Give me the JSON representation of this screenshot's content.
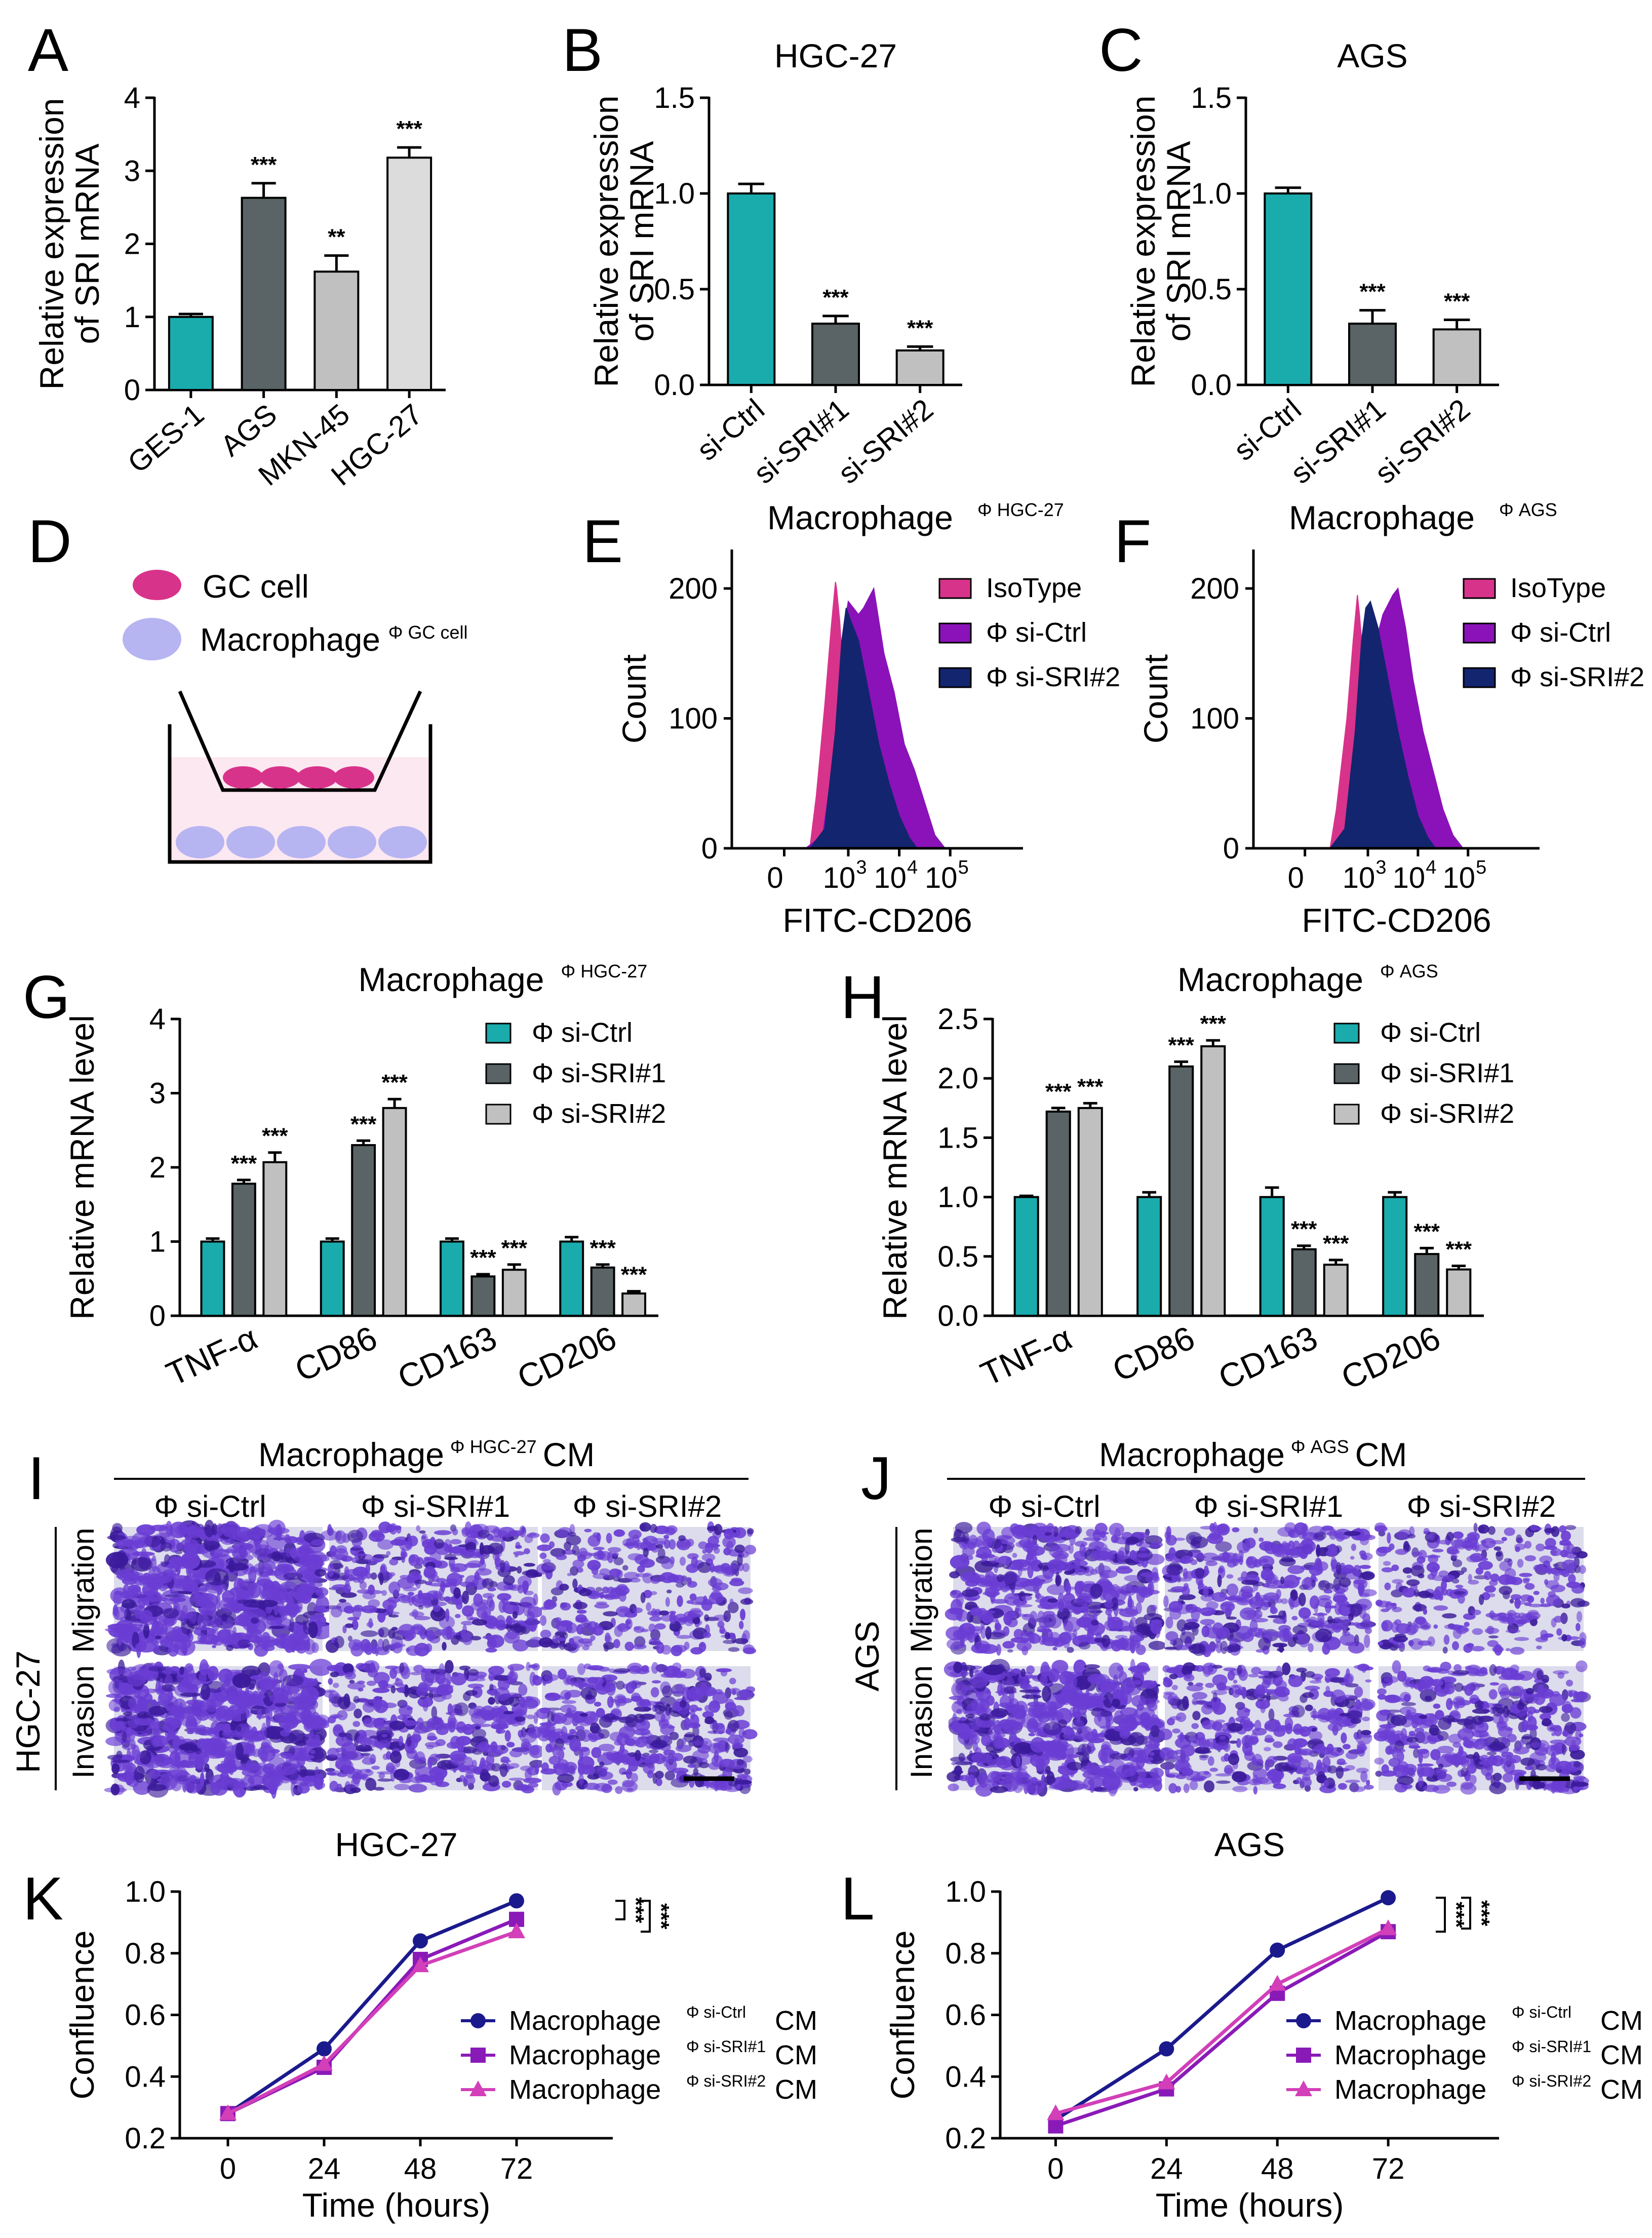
{
  "colors": {
    "teal": "#1aabad",
    "dark_gray": "#5a6365",
    "light_gray": "#c0c0c0",
    "very_light_gray": "#dcdcdc",
    "magenta": "#d8338b",
    "purple": "#8a12b8",
    "navy": "#13256e",
    "line_navy": "#1b1a8c",
    "line_purple": "#8a1ab8",
    "line_pink": "#d23fb8",
    "stain_bg": "#dcdcec",
    "stain": "#6a3dd4",
    "stain_dark": "#3a1a9a"
  },
  "chart_data": [
    {
      "panel": "A",
      "type": "bar",
      "title": "",
      "categories": [
        "GES-1",
        "AGS",
        "MKN-45",
        "HGC-27"
      ],
      "values": [
        1.0,
        2.63,
        1.62,
        3.18
      ],
      "errors": [
        0.04,
        0.2,
        0.22,
        0.14
      ],
      "significance": [
        "",
        "***",
        "**",
        "***"
      ],
      "colors": [
        "#1aabad",
        "#5a6365",
        "#c0c0c0",
        "#dcdcdc"
      ],
      "ylabel": [
        "Relative expression",
        "of SRI mRNA"
      ],
      "ylim": [
        0,
        4
      ],
      "yticks": [
        "0",
        "1",
        "2",
        "3",
        "4"
      ]
    },
    {
      "panel": "B",
      "type": "bar",
      "title": "HGC-27",
      "categories": [
        "si-Ctrl",
        "si-SRI#1",
        "si-SRI#2"
      ],
      "values": [
        1.0,
        0.32,
        0.18
      ],
      "errors": [
        0.05,
        0.04,
        0.02
      ],
      "significance": [
        "",
        "***",
        "***"
      ],
      "colors": [
        "#1aabad",
        "#5a6365",
        "#c0c0c0"
      ],
      "ylabel": [
        "Relative expression",
        "of SRI mRNA"
      ],
      "ylim": [
        0,
        1.5
      ],
      "yticks": [
        "0.0",
        "0.5",
        "1.0",
        "1.5"
      ]
    },
    {
      "panel": "C",
      "type": "bar",
      "title": "AGS",
      "categories": [
        "si-Ctrl",
        "si-SRI#1",
        "si-SRI#2"
      ],
      "values": [
        1.0,
        0.32,
        0.29
      ],
      "errors": [
        0.03,
        0.07,
        0.05
      ],
      "significance": [
        "",
        "***",
        "***"
      ],
      "colors": [
        "#1aabad",
        "#5a6365",
        "#c0c0c0"
      ],
      "ylabel": [
        "Relative expression",
        "of SRI mRNA"
      ],
      "ylim": [
        0,
        1.5
      ],
      "yticks": [
        "0.0",
        "0.5",
        "1.0",
        "1.5"
      ]
    },
    {
      "panel": "E",
      "type": "area",
      "title": "Macrophage",
      "title_sup": "Φ HGC-27",
      "xlabel": "FITC-CD206",
      "ylabel": "Count",
      "xticks": [
        "0",
        "10",
        "10",
        "10"
      ],
      "xtick_exps": [
        "",
        "3",
        "4",
        "5"
      ],
      "yticks": [
        "0",
        "100",
        "200"
      ],
      "ylim": [
        0,
        230
      ],
      "legend": [
        "IsoType",
        "Φ si-Ctrl",
        "Φ si-SRI#2"
      ],
      "series": [
        {
          "name": "IsoType",
          "log_x": [
            -0.75,
            1.2,
            1.5,
            1.9,
            2.2,
            2.4,
            2.45,
            2.6,
            2.8,
            3.0,
            3.3,
            3.55,
            3.6
          ],
          "y": [
            0,
            0,
            40,
            110,
            170,
            205,
            200,
            175,
            120,
            60,
            20,
            3,
            0
          ]
        },
        {
          "name": "Φ si-Ctrl",
          "log_x": [
            1.0,
            1.8,
            2.4,
            2.8,
            3.0,
            3.2,
            3.3,
            3.5,
            3.7,
            3.9,
            4.1,
            4.3,
            4.5,
            4.7,
            4.9
          ],
          "y": [
            0,
            10,
            80,
            170,
            190,
            180,
            185,
            200,
            150,
            120,
            80,
            60,
            35,
            10,
            0
          ]
        },
        {
          "name": "Φ si-SRI#2",
          "log_x": [
            1.2,
            1.9,
            2.4,
            2.7,
            2.9,
            3.05,
            3.2,
            3.4,
            3.6,
            3.8,
            4.0,
            4.2,
            4.35
          ],
          "y": [
            0,
            15,
            90,
            160,
            185,
            175,
            160,
            120,
            80,
            50,
            25,
            8,
            0
          ]
        }
      ]
    },
    {
      "panel": "F",
      "type": "area",
      "title": "Macrophage",
      "title_sup": "Φ AGS",
      "xlabel": "FITC-CD206",
      "ylabel": "Count",
      "xticks": [
        "0",
        "10",
        "10",
        "10"
      ],
      "xtick_exps": [
        "",
        "3",
        "4",
        "5"
      ],
      "yticks": [
        "0",
        "100",
        "200"
      ],
      "ylim": [
        0,
        230
      ],
      "legend": [
        "IsoType",
        "Φ si-Ctrl",
        "Φ si-SRI#2"
      ],
      "series": [
        {
          "name": "IsoType",
          "log_x": [
            -0.75,
            1.2,
            1.5,
            2.0,
            2.3,
            2.5,
            2.6,
            2.75,
            2.9,
            3.1,
            3.3,
            3.5
          ],
          "y": [
            0,
            0,
            30,
            100,
            160,
            195,
            180,
            150,
            110,
            50,
            15,
            0
          ]
        },
        {
          "name": "Φ si-Ctrl",
          "log_x": [
            1.8,
            2.4,
            2.8,
            3.1,
            3.3,
            3.5,
            3.6,
            3.75,
            3.9,
            4.1,
            4.3,
            4.5,
            4.7,
            4.9
          ],
          "y": [
            0,
            20,
            90,
            150,
            180,
            195,
            200,
            170,
            130,
            90,
            60,
            30,
            10,
            0
          ]
        },
        {
          "name": "Φ si-SRI#2",
          "log_x": [
            1.2,
            1.9,
            2.4,
            2.7,
            2.9,
            3.05,
            3.2,
            3.4,
            3.6,
            3.8,
            4.0,
            4.2,
            4.35
          ],
          "y": [
            0,
            15,
            90,
            160,
            185,
            190,
            170,
            130,
            90,
            55,
            25,
            8,
            0
          ]
        }
      ]
    },
    {
      "panel": "G",
      "type": "bar",
      "title": "Macrophage",
      "title_sup": "Φ HGC-27",
      "categories": [
        "TNF-α",
        "CD86",
        "CD163",
        "CD206"
      ],
      "series": [
        {
          "name": "Φ si-Ctrl",
          "values": [
            1.0,
            1.0,
            1.0,
            1.0
          ],
          "errors": [
            0.04,
            0.04,
            0.04,
            0.06
          ]
        },
        {
          "name": "Φ si-SRI#1",
          "values": [
            1.78,
            2.3,
            0.53,
            0.65
          ],
          "errors": [
            0.05,
            0.06,
            0.03,
            0.04
          ]
        },
        {
          "name": "Φ si-SRI#2",
          "values": [
            2.07,
            2.8,
            0.62,
            0.3
          ],
          "errors": [
            0.13,
            0.12,
            0.07,
            0.03
          ]
        }
      ],
      "significance": [
        [
          "",
          "***",
          "***"
        ],
        [
          "",
          "***",
          "***"
        ],
        [
          "",
          "***",
          "***"
        ],
        [
          "",
          "***",
          "***"
        ]
      ],
      "colors": [
        "#1aabad",
        "#5a6365",
        "#c0c0c0"
      ],
      "ylabel": "Relative mRNA level",
      "ylim": [
        0,
        4
      ],
      "yticks": [
        "0",
        "1",
        "2",
        "3",
        "4"
      ]
    },
    {
      "panel": "H",
      "type": "bar",
      "title": "Macrophage",
      "title_sup": "Φ AGS",
      "categories": [
        "TNF-α",
        "CD86",
        "CD163",
        "CD206"
      ],
      "series": [
        {
          "name": "Φ si-Ctrl",
          "values": [
            1.0,
            1.0,
            1.0,
            1.0
          ],
          "errors": [
            0.01,
            0.04,
            0.08,
            0.04
          ]
        },
        {
          "name": "Φ si-SRI#1",
          "values": [
            1.72,
            2.1,
            0.56,
            0.52
          ],
          "errors": [
            0.03,
            0.04,
            0.03,
            0.05
          ]
        },
        {
          "name": "Φ si-SRI#2",
          "values": [
            1.75,
            2.27,
            0.43,
            0.39
          ],
          "errors": [
            0.04,
            0.05,
            0.04,
            0.03
          ]
        }
      ],
      "significance": [
        [
          "",
          "***",
          "***"
        ],
        [
          "",
          "***",
          "***"
        ],
        [
          "",
          "***",
          "***"
        ],
        [
          "",
          "***",
          "***"
        ]
      ],
      "colors": [
        "#1aabad",
        "#5a6365",
        "#c0c0c0"
      ],
      "ylabel": "Relative mRNA level",
      "ylim": [
        0,
        2.5
      ],
      "yticks": [
        "0.0",
        "0.5",
        "1.0",
        "1.5",
        "2.0",
        "2.5"
      ]
    },
    {
      "panel": "K",
      "type": "line",
      "title": "HGC-27",
      "x": [
        0,
        24,
        48,
        72
      ],
      "xticks": [
        "0",
        "24",
        "48",
        "72"
      ],
      "xlabel": "Time (hours)",
      "ylabel": "Confluence",
      "ylim": [
        0.2,
        1.0
      ],
      "yticks": [
        "0.2",
        "0.4",
        "0.6",
        "0.8",
        "1.0"
      ],
      "series": [
        {
          "name": "Macrophage",
          "sup": "Φ si-Ctrl",
          "suffix": "CM",
          "values": [
            0.28,
            0.49,
            0.84,
            0.97
          ],
          "marker": "circle"
        },
        {
          "name": "Macrophage",
          "sup": "Φ si-SRI#1",
          "suffix": "CM",
          "values": [
            0.28,
            0.43,
            0.78,
            0.91
          ],
          "marker": "square"
        },
        {
          "name": "Macrophage",
          "sup": "Φ si-SRI#2",
          "suffix": "CM",
          "values": [
            0.28,
            0.44,
            0.76,
            0.87
          ],
          "marker": "triangle"
        }
      ],
      "significance": [
        "***",
        "***"
      ]
    },
    {
      "panel": "L",
      "type": "line",
      "title": "AGS",
      "x": [
        0,
        24,
        48,
        72
      ],
      "xticks": [
        "0",
        "24",
        "48",
        "72"
      ],
      "xlabel": "Time (hours)",
      "ylabel": "Confluence",
      "ylim": [
        0.2,
        1.0
      ],
      "yticks": [
        "0.2",
        "0.4",
        "0.6",
        "0.8",
        "1.0"
      ],
      "series": [
        {
          "name": "Macrophage",
          "sup": "Φ si-Ctrl",
          "suffix": "CM",
          "values": [
            0.26,
            0.49,
            0.81,
            0.98
          ],
          "marker": "circle"
        },
        {
          "name": "Macrophage",
          "sup": "Φ si-SRI#1",
          "suffix": "CM",
          "values": [
            0.24,
            0.36,
            0.67,
            0.87
          ],
          "marker": "square"
        },
        {
          "name": "Macrophage",
          "sup": "Φ si-SRI#2",
          "suffix": "CM",
          "values": [
            0.28,
            0.38,
            0.7,
            0.88
          ],
          "marker": "triangle"
        }
      ],
      "significance": [
        "***",
        "***"
      ]
    }
  ],
  "panel_labels": [
    "A",
    "B",
    "C",
    "D",
    "E",
    "F",
    "G",
    "H",
    "I",
    "J",
    "K",
    "L"
  ],
  "panel_d": {
    "legend_gc": "GC cell",
    "legend_mac": "Macrophage",
    "legend_mac_sup": "Φ GC cell"
  },
  "panel_i": {
    "header": "Macrophage",
    "header_sup": "Φ HGC-27",
    "header_suffix": "CM",
    "columns": [
      "Φ si-Ctrl",
      "Φ si-SRI#1",
      "Φ si-SRI#2"
    ],
    "rows": [
      "Migration",
      "Invasion"
    ],
    "cell_line": "HGC-27",
    "density": [
      [
        0.95,
        0.55,
        0.4
      ],
      [
        0.95,
        0.6,
        0.55
      ]
    ]
  },
  "panel_j": {
    "header": "Macrophage",
    "header_sup": "Φ AGS",
    "header_suffix": "CM",
    "columns": [
      "Φ si-Ctrl",
      "Φ si-SRI#1",
      "Φ si-SRI#2"
    ],
    "rows": [
      "Migration",
      "Invasion"
    ],
    "cell_line": "AGS",
    "density": [
      [
        0.7,
        0.55,
        0.35
      ],
      [
        0.85,
        0.5,
        0.55
      ]
    ]
  }
}
